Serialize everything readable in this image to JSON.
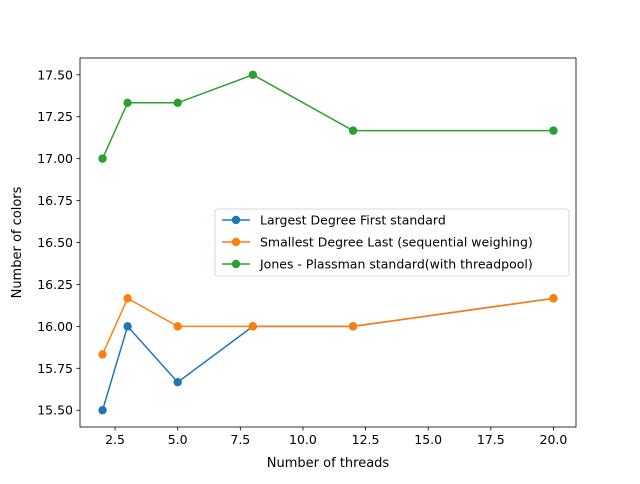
{
  "chart_data": {
    "type": "line",
    "title": "",
    "xlabel": "Number of threads",
    "ylabel": "Number of colors",
    "xlim": [
      1.1,
      20.9
    ],
    "ylim": [
      15.4,
      17.6
    ],
    "x_ticks": [
      2.5,
      5.0,
      7.5,
      10.0,
      12.5,
      15.0,
      17.5,
      20.0
    ],
    "x_tick_labels": [
      "2.5",
      "5.0",
      "7.5",
      "10.0",
      "12.5",
      "15.0",
      "17.5",
      "20.0"
    ],
    "y_ticks": [
      15.5,
      15.75,
      16.0,
      16.25,
      16.5,
      16.75,
      17.0,
      17.25,
      17.5
    ],
    "y_tick_labels": [
      "15.50",
      "15.75",
      "16.00",
      "16.25",
      "16.50",
      "16.75",
      "17.00",
      "17.25",
      "17.50"
    ],
    "grid": false,
    "legend_position": "center-right",
    "x": [
      2,
      3,
      5,
      8,
      12,
      20
    ],
    "series": [
      {
        "name": "Largest Degree First standard",
        "color": "#1f77b4",
        "marker": "circle",
        "values": [
          15.5,
          16.0,
          15.667,
          16.0,
          16.0,
          16.167
        ]
      },
      {
        "name": "Smallest Degree Last (sequential weighing)",
        "color": "#ff7f0e",
        "marker": "circle",
        "values": [
          15.833,
          16.167,
          16.0,
          16.0,
          16.0,
          16.167
        ]
      },
      {
        "name": "Jones - Plassman standard(with threadpool)",
        "color": "#2ca02c",
        "marker": "circle",
        "values": [
          17.0,
          17.333,
          17.333,
          17.5,
          17.167,
          17.167
        ]
      }
    ]
  }
}
